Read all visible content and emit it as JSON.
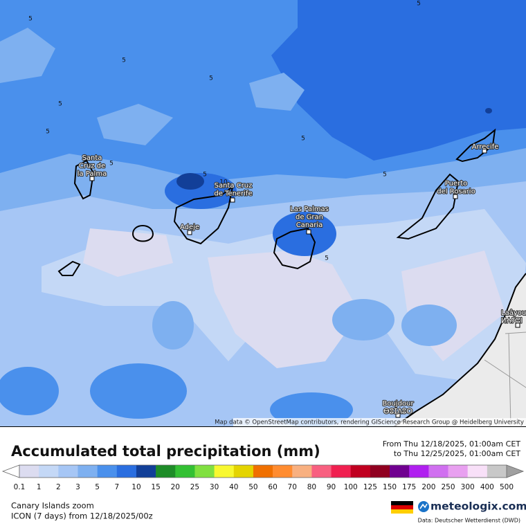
{
  "map": {
    "places": [
      {
        "lines": [
          "Santa",
          "Cruz de",
          "la Palma"
        ]
      },
      {
        "lines": [
          "Santa Cruz",
          "de Tenerife"
        ]
      },
      {
        "lines": [
          "Adeje"
        ]
      },
      {
        "lines": [
          "Las Palmas",
          "de Gran",
          "Canaria"
        ]
      },
      {
        "lines": [
          "Puerto",
          "del Rosario"
        ]
      },
      {
        "lines": [
          "Arrecife"
        ]
      },
      {
        "lines": [
          "Laâyoune",
          "ⵍⵄⵢⵓⵏ"
        ]
      },
      {
        "lines": [
          "Boujdour",
          "ⴱⵓⵊⴷⵓⵔ"
        ]
      }
    ],
    "contour_labels": [
      5,
      5,
      5,
      5,
      5,
      5,
      5,
      5,
      5,
      5,
      5,
      10
    ],
    "attribution": "Map data © OpenStreetMap contributors, rendering GIScience Research Group @ Heidelberg University"
  },
  "legend": {
    "title": "Accumulated total precipitation (mm)",
    "period": [
      "From Thu 12/18/2025, 01:00am CET",
      "to Thu 12/25/2025, 01:00am CET"
    ],
    "ticks": [
      0.1,
      1,
      2,
      3,
      5,
      7,
      10,
      15,
      20,
      25,
      30,
      40,
      50,
      60,
      70,
      80,
      90,
      100,
      125,
      150,
      175,
      200,
      250,
      300,
      400,
      500
    ],
    "colors": [
      "#dcdcf0",
      "#c4d8f6",
      "#a6c6f5",
      "#7eb0f0",
      "#4a90ec",
      "#2a6ee0",
      "#123f98",
      "#1e8c28",
      "#33c033",
      "#80e040",
      "#f8f830",
      "#e4d400",
      "#f07000",
      "#ff8c30",
      "#f8b080",
      "#f86080",
      "#f02050",
      "#c00020",
      "#900020",
      "#700090",
      "#b020f0",
      "#d070f0",
      "#e8a0f0",
      "#f8e0f8",
      "#c8c8c8"
    ],
    "under_color": "#ffffff",
    "over_color": "#a0a0a0"
  },
  "footer": {
    "region": "Canary Islands zoom",
    "model": "ICON (7 days) from 12/18/2025/00z",
    "brand": "meteologix.com",
    "source": "Data: Deutscher Wetterdienst (DWD)"
  }
}
